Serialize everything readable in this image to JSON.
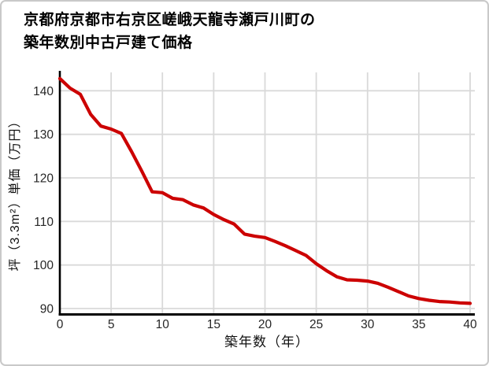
{
  "title": {
    "line1": "京都府京都市右京区嵯峨天龍寺瀬戸川町の",
    "line2": "築年数別中古戸建て価格"
  },
  "colors": {
    "line": "#cc0000",
    "grid": "#d9d9d9",
    "axis": "#000000",
    "tick_text": "#262626",
    "border": "#c9c9c9",
    "background": "#ffffff"
  },
  "chart_data": {
    "type": "line",
    "title": "京都府京都市右京区嵯峨天龍寺瀬戸川町の築年数別中古戸建て価格",
    "xlabel": "築年数（年）",
    "ylabel": "坪（3.3m²）単価（万円）",
    "x_ticks": [
      0,
      5,
      10,
      15,
      20,
      25,
      30,
      35,
      40
    ],
    "y_ticks": [
      90,
      100,
      110,
      120,
      130,
      140
    ],
    "xlim": [
      0,
      40.5
    ],
    "ylim": [
      88.6,
      144.3
    ],
    "grid": true,
    "legend_position": "none",
    "x": [
      0,
      1,
      2,
      3,
      4,
      5,
      6,
      7,
      8,
      9,
      10,
      11,
      12,
      13,
      14,
      15,
      16,
      17,
      18,
      19,
      20,
      21,
      22,
      23,
      24,
      25,
      26,
      27,
      28,
      29,
      30,
      31,
      32,
      33,
      34,
      35,
      36,
      37,
      38,
      39,
      40
    ],
    "values": [
      142.8,
      140.6,
      139.2,
      134.6,
      131.9,
      131.2,
      130.2,
      126.0,
      121.5,
      116.8,
      116.6,
      115.3,
      115.0,
      113.8,
      113.1,
      111.6,
      110.4,
      109.4,
      107.1,
      106.6,
      106.3,
      105.4,
      104.4,
      103.3,
      102.2,
      100.3,
      98.7,
      97.3,
      96.6,
      96.5,
      96.3,
      95.8,
      94.9,
      93.9,
      92.9,
      92.3,
      91.9,
      91.6,
      91.5,
      91.3,
      91.2
    ]
  }
}
